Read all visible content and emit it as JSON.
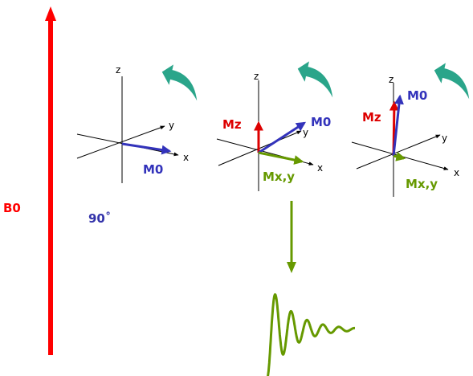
{
  "field": {
    "label": "B0",
    "color": "#ff0000"
  },
  "pulse": {
    "label": "90˚",
    "color": "#3333aa"
  },
  "axes": {
    "x": "x",
    "y": "y",
    "z": "z"
  },
  "colors": {
    "m0": "#3333bb",
    "mz": "#dd0000",
    "mxy": "#669900",
    "rotation_arrow": "#2aa58a",
    "axis": "#000000"
  },
  "panels": [
    {
      "m0_label": "M0"
    },
    {
      "m0_label": "M0",
      "mz_label": "Mz",
      "mxy_label": "Mx,y"
    },
    {
      "m0_label": "M0",
      "mz_label": "Mz",
      "mxy_label": "Mx,y"
    }
  ],
  "signal": {
    "shape": "decaying-oscillation",
    "icon": "fid-wave-icon"
  }
}
